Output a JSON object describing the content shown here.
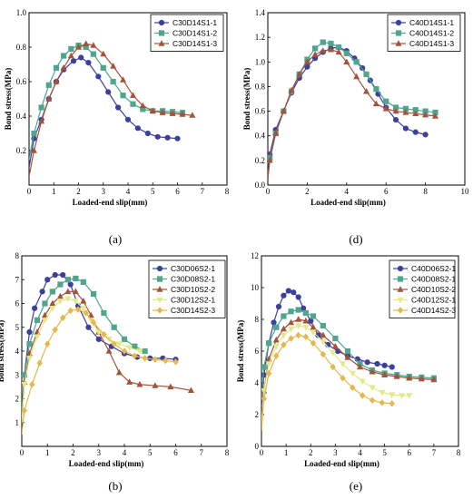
{
  "figure": {
    "panel_labels": [
      "(a)",
      "(d)",
      "(b)",
      "(e)"
    ]
  },
  "chart_data": [
    {
      "panel": "(a)",
      "type": "line",
      "xlabel": "Loaded-end slip(mm)",
      "ylabel": "Bond stress(MPa)",
      "xlim": [
        0,
        8
      ],
      "ylim": [
        0,
        1.0
      ],
      "xticks": [
        0,
        1,
        2,
        3,
        4,
        5,
        6,
        7,
        8
      ],
      "yticks": [
        0.2,
        0.4,
        0.6,
        0.8,
        1.0
      ],
      "ytick_labels": [
        "0.2",
        "0.4",
        "0.6",
        "0.8",
        "1.0"
      ],
      "legend": "top-right",
      "series": [
        {
          "name": "C30D14S1-1",
          "color": "#3b3f9e",
          "marker": "circle",
          "x": [
            0,
            0.2,
            0.5,
            0.8,
            1.1,
            1.4,
            1.8,
            2.1,
            2.4,
            2.8,
            3.2,
            3.6,
            4.0,
            4.4,
            4.8,
            5.2,
            5.6,
            6.0
          ],
          "y": [
            0.1,
            0.27,
            0.38,
            0.5,
            0.6,
            0.67,
            0.72,
            0.74,
            0.71,
            0.63,
            0.54,
            0.45,
            0.38,
            0.33,
            0.3,
            0.28,
            0.275,
            0.27
          ]
        },
        {
          "name": "C30D14S1-2",
          "color": "#4fa58e",
          "marker": "square",
          "x": [
            0,
            0.2,
            0.5,
            0.8,
            1.1,
            1.4,
            1.7,
            2.0,
            2.3,
            2.6,
            3.0,
            3.4,
            3.8,
            4.2,
            4.6,
            5.0,
            5.4,
            5.8,
            6.2
          ],
          "y": [
            0.15,
            0.3,
            0.45,
            0.58,
            0.68,
            0.75,
            0.79,
            0.81,
            0.8,
            0.76,
            0.68,
            0.6,
            0.52,
            0.47,
            0.44,
            0.43,
            0.43,
            0.425,
            0.42
          ]
        },
        {
          "name": "C30D14S1-3",
          "color": "#a5523a",
          "marker": "triangle",
          "x": [
            0,
            0.2,
            0.5,
            0.8,
            1.1,
            1.4,
            1.7,
            2.0,
            2.3,
            2.6,
            3.0,
            3.4,
            3.8,
            4.2,
            4.6,
            5.0,
            5.4,
            5.8,
            6.2,
            6.6
          ],
          "y": [
            0.05,
            0.2,
            0.37,
            0.5,
            0.6,
            0.68,
            0.75,
            0.8,
            0.82,
            0.81,
            0.76,
            0.69,
            0.61,
            0.52,
            0.46,
            0.43,
            0.42,
            0.415,
            0.41,
            0.405
          ]
        }
      ]
    },
    {
      "panel": "(d)",
      "type": "line",
      "xlabel": "Loaded-end slip(mm)",
      "ylabel": "Bond stress(MPa)",
      "xlim": [
        0,
        10
      ],
      "ylim": [
        0,
        1.4
      ],
      "xticks": [
        0,
        2,
        4,
        6,
        8,
        10
      ],
      "yticks": [
        0.0,
        0.2,
        0.4,
        0.6,
        0.8,
        1.0,
        1.2,
        1.4
      ],
      "ytick_labels": [
        "0.0",
        "0.2",
        "0.4",
        "0.6",
        "0.8",
        "1.0",
        "1.2",
        "1.4"
      ],
      "legend": "top-right",
      "series": [
        {
          "name": "C40D14S1-1",
          "color": "#3b3f9e",
          "marker": "circle",
          "x": [
            0,
            0.1,
            0.4,
            0.8,
            1.2,
            1.6,
            2.0,
            2.4,
            2.8,
            3.2,
            3.6,
            4.0,
            4.4,
            4.8,
            5.2,
            5.6,
            6.0,
            6.5,
            7.0,
            7.5,
            8.0
          ],
          "y": [
            0.05,
            0.25,
            0.45,
            0.6,
            0.75,
            0.87,
            0.96,
            1.03,
            1.08,
            1.11,
            1.12,
            1.09,
            1.03,
            0.95,
            0.85,
            0.74,
            0.63,
            0.53,
            0.46,
            0.43,
            0.41
          ]
        },
        {
          "name": "C40D14S1-2",
          "color": "#4fa58e",
          "marker": "square",
          "x": [
            0,
            0.1,
            0.4,
            0.8,
            1.2,
            1.6,
            2.0,
            2.4,
            2.8,
            3.2,
            3.6,
            4.0,
            4.5,
            5.0,
            5.5,
            6.0,
            6.5,
            7.0,
            7.5,
            8.0,
            8.5
          ],
          "y": [
            0.05,
            0.22,
            0.42,
            0.6,
            0.76,
            0.9,
            1.02,
            1.11,
            1.16,
            1.15,
            1.12,
            1.07,
            1.0,
            0.9,
            0.78,
            0.68,
            0.63,
            0.62,
            0.61,
            0.6,
            0.59
          ]
        },
        {
          "name": "C40D14S1-3",
          "color": "#a5523a",
          "marker": "triangle",
          "x": [
            0,
            0.1,
            0.4,
            0.8,
            1.2,
            1.6,
            2.0,
            2.4,
            2.8,
            3.2,
            3.6,
            4.0,
            4.5,
            5.0,
            5.5,
            6.0,
            6.5,
            7.0,
            7.5,
            8.0,
            8.5
          ],
          "y": [
            0.05,
            0.2,
            0.42,
            0.6,
            0.77,
            0.9,
            1.0,
            1.06,
            1.09,
            1.1,
            1.08,
            1.0,
            0.88,
            0.76,
            0.66,
            0.62,
            0.6,
            0.59,
            0.58,
            0.57,
            0.56
          ]
        }
      ]
    },
    {
      "panel": "(b)",
      "type": "line",
      "xlabel": "Loaded-end slip(mm)",
      "ylabel": "Bond stress(MPa)",
      "xlim": [
        0,
        8
      ],
      "ylim": [
        0,
        8
      ],
      "xticks": [
        0,
        1,
        2,
        3,
        4,
        5,
        6,
        7,
        8
      ],
      "yticks": [
        1,
        2,
        3,
        4,
        5,
        6,
        7,
        8
      ],
      "ytick_labels": [
        "1",
        "2",
        "3",
        "4",
        "5",
        "6",
        "7",
        "8"
      ],
      "legend": "top-right",
      "series": [
        {
          "name": "C30D06S2-1",
          "color": "#3b3f9e",
          "marker": "circle",
          "x": [
            0,
            0.1,
            0.3,
            0.5,
            0.8,
            1.0,
            1.3,
            1.6,
            1.9,
            2.2,
            2.6,
            3.0,
            3.5,
            4.0,
            4.5,
            5.0,
            5.5,
            6.0
          ],
          "y": [
            1.0,
            3.0,
            4.8,
            5.8,
            6.5,
            7.0,
            7.2,
            7.2,
            6.8,
            5.9,
            5.0,
            4.5,
            4.2,
            3.9,
            3.75,
            3.7,
            3.7,
            3.65
          ]
        },
        {
          "name": "C30D08S2-1",
          "color": "#4fa58e",
          "marker": "square",
          "x": [
            0,
            0.1,
            0.3,
            0.6,
            0.9,
            1.2,
            1.5,
            1.8,
            2.1,
            2.4,
            2.8,
            3.2,
            3.6,
            4.0,
            4.4,
            4.8
          ],
          "y": [
            1.5,
            3.0,
            4.3,
            5.3,
            6.0,
            6.5,
            6.8,
            7.0,
            7.05,
            6.9,
            6.4,
            5.6,
            5.0,
            4.5,
            4.2,
            4.0
          ]
        },
        {
          "name": "C30D10S2-2",
          "color": "#a5523a",
          "marker": "triangle",
          "x": [
            0,
            0.1,
            0.3,
            0.6,
            0.9,
            1.2,
            1.5,
            1.8,
            2.1,
            2.4,
            2.7,
            3.0,
            3.4,
            3.8,
            4.2,
            4.6,
            5.2,
            5.8,
            6.6
          ],
          "y": [
            1.0,
            2.7,
            3.9,
            4.8,
            5.5,
            6.0,
            6.3,
            6.5,
            6.5,
            6.1,
            5.5,
            4.8,
            4.0,
            3.1,
            2.7,
            2.6,
            2.55,
            2.5,
            2.35
          ]
        },
        {
          "name": "C30D12S2-1",
          "color": "#e3e98a",
          "marker": "triangle-down",
          "x": [
            0,
            0.1,
            0.3,
            0.6,
            0.9,
            1.2,
            1.5,
            1.8,
            2.1,
            2.4,
            2.7,
            3.0,
            3.4,
            3.8,
            4.2,
            4.6
          ],
          "y": [
            1.0,
            2.6,
            3.7,
            4.6,
            5.3,
            5.8,
            6.1,
            6.2,
            6.1,
            5.8,
            5.3,
            4.8,
            4.5,
            4.3,
            4.15,
            4.0
          ]
        },
        {
          "name": "C30D14S2-3",
          "color": "#e5b84e",
          "marker": "diamond",
          "x": [
            0,
            0.1,
            0.4,
            0.7,
            1.0,
            1.3,
            1.6,
            1.9,
            2.2,
            2.5,
            2.8,
            3.2,
            3.6,
            4.0,
            4.4,
            4.8,
            5.2,
            5.6,
            6.0
          ],
          "y": [
            0.5,
            1.5,
            2.6,
            3.5,
            4.3,
            4.9,
            5.4,
            5.7,
            5.75,
            5.6,
            5.2,
            4.7,
            4.3,
            4.0,
            3.8,
            3.7,
            3.65,
            3.6,
            3.55
          ]
        }
      ]
    },
    {
      "panel": "(e)",
      "type": "line",
      "xlabel": "Loaded-end slip(mm)",
      "ylabel": "Bond stress(MPa)",
      "xlim": [
        0,
        8
      ],
      "ylim": [
        0,
        12
      ],
      "xticks": [
        0,
        1,
        2,
        3,
        4,
        5,
        6,
        7,
        8
      ],
      "yticks": [
        0,
        2,
        4,
        6,
        8,
        10,
        12
      ],
      "ytick_labels": [
        "0",
        "2",
        "4",
        "6",
        "8",
        "10",
        "12"
      ],
      "legend": "top-right",
      "series": [
        {
          "name": "C40D06S2-1",
          "color": "#3b3f9e",
          "marker": "circle",
          "x": [
            0,
            0.1,
            0.3,
            0.5,
            0.7,
            0.9,
            1.1,
            1.3,
            1.5,
            1.7,
            2.0,
            2.3,
            2.7,
            3.1,
            3.5,
            3.9,
            4.3,
            4.7,
            5.0,
            5.3
          ],
          "y": [
            2.5,
            4.5,
            6.5,
            7.8,
            8.8,
            9.5,
            9.8,
            9.7,
            9.4,
            8.7,
            7.9,
            7.0,
            6.4,
            6.0,
            5.7,
            5.5,
            5.3,
            5.2,
            5.1,
            5.0
          ]
        },
        {
          "name": "C40D08S2-1",
          "color": "#4fa58e",
          "marker": "square",
          "x": [
            0,
            0.1,
            0.3,
            0.6,
            0.9,
            1.2,
            1.5,
            1.8,
            2.1,
            2.5,
            3.0,
            3.5,
            4.0,
            4.5,
            5.0,
            5.5,
            6.0,
            6.5,
            7.0
          ],
          "y": [
            3.0,
            5.0,
            6.5,
            7.5,
            8.2,
            8.5,
            8.6,
            8.4,
            8.2,
            7.6,
            6.8,
            6.0,
            5.2,
            4.8,
            4.6,
            4.5,
            4.4,
            4.35,
            4.3
          ]
        },
        {
          "name": "C40D10S2-2",
          "color": "#a5523a",
          "marker": "triangle",
          "x": [
            0,
            0.1,
            0.3,
            0.6,
            0.9,
            1.2,
            1.5,
            1.8,
            2.1,
            2.5,
            3.0,
            3.5,
            4.0,
            4.5,
            5.0,
            5.5,
            6.0,
            6.5,
            7.0
          ],
          "y": [
            1.0,
            3.5,
            5.5,
            6.7,
            7.4,
            7.8,
            8.0,
            7.9,
            7.5,
            7.0,
            6.3,
            5.6,
            5.0,
            4.7,
            4.5,
            4.4,
            4.3,
            4.25,
            4.2
          ]
        },
        {
          "name": "C40D12S2-1",
          "color": "#e3e98a",
          "marker": "triangle-down",
          "x": [
            0,
            0.1,
            0.3,
            0.6,
            0.9,
            1.2,
            1.5,
            1.8,
            2.1,
            2.5,
            2.9,
            3.3,
            3.7,
            4.1,
            4.5,
            4.9,
            5.3,
            5.7,
            6.0
          ],
          "y": [
            1.5,
            3.5,
            5.2,
            6.3,
            7.0,
            7.4,
            7.6,
            7.5,
            7.2,
            6.6,
            5.9,
            5.2,
            4.6,
            4.1,
            3.7,
            3.4,
            3.25,
            3.2,
            3.2
          ]
        },
        {
          "name": "C40D14S2-3",
          "color": "#e5b84e",
          "marker": "diamond",
          "x": [
            0,
            0.1,
            0.3,
            0.6,
            0.9,
            1.2,
            1.5,
            1.8,
            2.1,
            2.5,
            2.9,
            3.3,
            3.7,
            4.1,
            4.5,
            4.9,
            5.3
          ],
          "y": [
            1.0,
            3.0,
            4.6,
            5.7,
            6.4,
            6.8,
            7.0,
            6.9,
            6.5,
            5.8,
            5.0,
            4.3,
            3.7,
            3.2,
            2.9,
            2.75,
            2.7
          ]
        }
      ]
    }
  ]
}
